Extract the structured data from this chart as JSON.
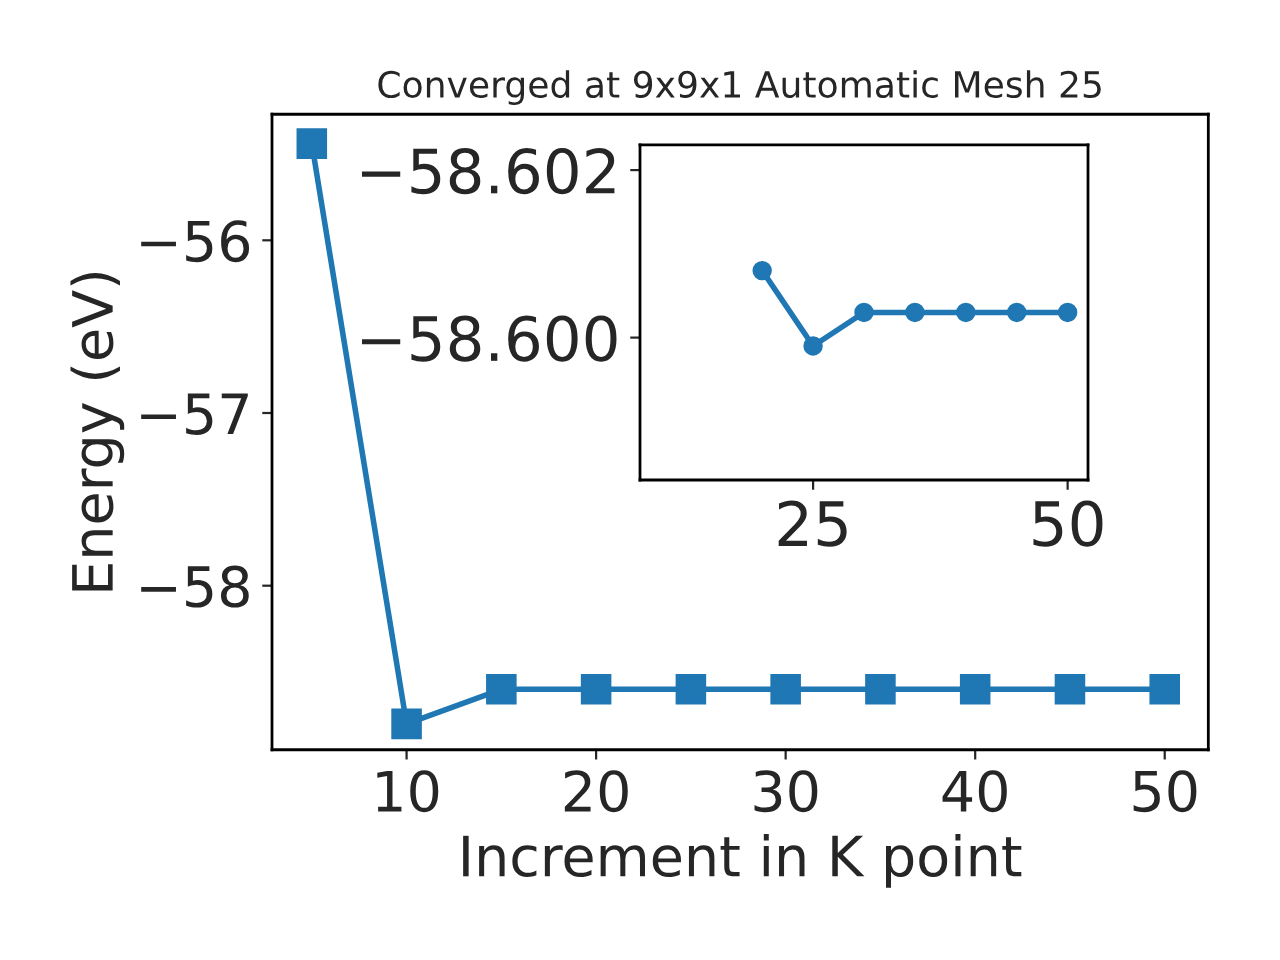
{
  "chart_data": [
    {
      "type": "line",
      "title": "Converged at 9x9x1 Automatic Mesh 25",
      "xlabel": "Increment in K point",
      "ylabel": "Energy (eV)",
      "x": [
        5,
        10,
        15,
        20,
        25,
        30,
        35,
        40,
        45,
        50
      ],
      "series": [
        {
          "color": "#1f77b4",
          "values": [
            -55.44,
            -58.8,
            -58.6,
            -58.6,
            -58.6,
            -58.6,
            -58.6,
            -58.6,
            -58.6,
            -58.6
          ]
        }
      ],
      "marker": "square",
      "line_style": "solid",
      "grid": false,
      "legend": false,
      "xlim": [
        2.9,
        52.3
      ],
      "ylim": [
        -58.95,
        -55.27
      ],
      "xticks": [
        10,
        20,
        30,
        40,
        50
      ],
      "yticks": [
        -58,
        -57,
        -56
      ]
    },
    {
      "type": "line",
      "x": [
        20,
        25,
        30,
        35,
        40,
        45,
        50
      ],
      "series": [
        {
          "color": "#1f77b4",
          "values": [
            -58.6008,
            -58.5999,
            -58.6003,
            -58.6003,
            -58.6003,
            -58.6003,
            -58.6003
          ]
        }
      ],
      "marker": "circle",
      "line_style": "solid",
      "grid": false,
      "legend": false,
      "xlim": [
        8,
        52
      ],
      "ylim": [
        -58.5983,
        -58.6023
      ],
      "xticks": [
        25,
        50
      ],
      "yticks": [
        {
          "value": -58.602,
          "label": "−58.602"
        },
        {
          "value": -58.6,
          "label": "−58.600"
        }
      ]
    }
  ]
}
